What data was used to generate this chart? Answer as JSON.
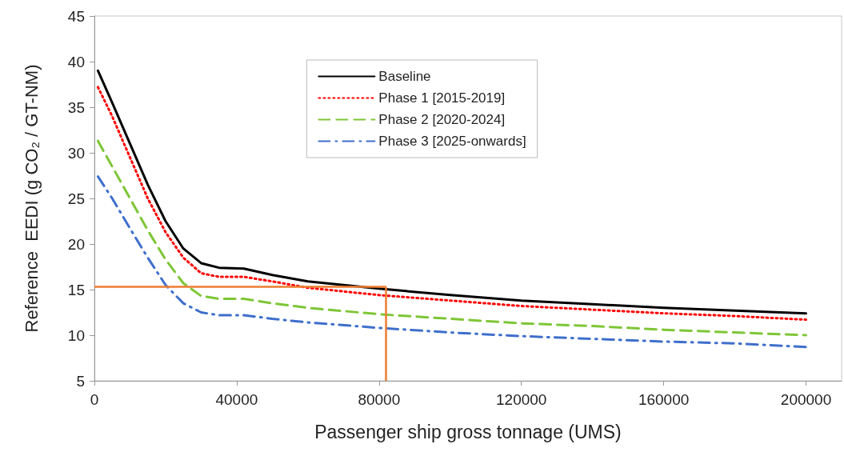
{
  "chart_data": {
    "type": "line",
    "xlabel": "Passenger ship gross tonnage (UMS)",
    "ylabel": "Reference  EEDI (g CO₂ / GT-NM)",
    "xlim": [
      0,
      210000
    ],
    "xticks": [
      0,
      40000,
      80000,
      120000,
      160000,
      200000
    ],
    "ylim": [
      5,
      45
    ],
    "yticks": [
      5,
      10,
      15,
      20,
      25,
      30,
      35,
      40,
      45
    ],
    "grid": false,
    "ref_lines": [
      {
        "axis": "y",
        "value": 15.3,
        "color": "#ed7d31",
        "line_style": "solid"
      },
      {
        "axis": "x",
        "value": 82000,
        "color": "#ed7d31",
        "line_style": "solid"
      }
    ],
    "legend": "top",
    "marker": "none",
    "x": [
      1000,
      5000,
      10000,
      15000,
      20000,
      25000,
      30000,
      35000,
      42000,
      50000,
      60000,
      80000,
      100000,
      120000,
      140000,
      160000,
      180000,
      200000
    ],
    "series": [
      {
        "name": "Baseline",
        "color": "#000000",
        "line_style": "solid",
        "values": [
          39,
          35.5,
          31,
          26.5,
          22.5,
          19.5,
          17.9,
          17.4,
          17.3,
          16.6,
          15.9,
          15.1,
          14.4,
          13.8,
          13.4,
          13.0,
          12.7,
          12.4
        ]
      },
      {
        "name": "Phase 1 [2015-2019]",
        "color": "#ff0000",
        "line_style": "dotted",
        "values": [
          37.2,
          34,
          29.5,
          25,
          21.3,
          18.5,
          16.8,
          16.4,
          16.4,
          15.9,
          15.2,
          14.4,
          13.8,
          13.2,
          12.8,
          12.4,
          12.1,
          11.7
        ]
      },
      {
        "name": "Phase 2 [2020-2024]",
        "color": "#7ec636",
        "line_style": "dashed",
        "values": [
          31.3,
          28.5,
          25,
          21.5,
          18.3,
          15.7,
          14.3,
          14.0,
          14.0,
          13.5,
          13.0,
          12.3,
          11.8,
          11.3,
          11.0,
          10.6,
          10.3,
          10.0
        ]
      },
      {
        "name": "Phase 3 [2025-onwards]",
        "color": "#3f6fcc",
        "line_style": "dashdot",
        "values": [
          27.4,
          25,
          21.7,
          18.5,
          15.5,
          13.5,
          12.5,
          12.2,
          12.2,
          11.8,
          11.4,
          10.8,
          10.3,
          9.9,
          9.6,
          9.3,
          9.1,
          8.7
        ]
      }
    ]
  }
}
